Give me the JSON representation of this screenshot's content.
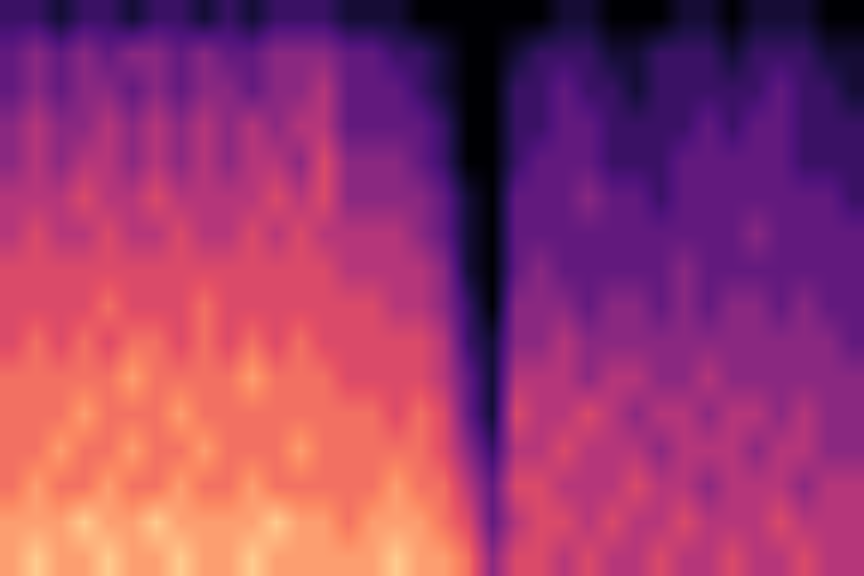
{
  "chart_data": {
    "type": "heatmap",
    "tick_labels": false,
    "zlim": [
      0,
      10
    ],
    "z": [
      [
        8,
        9,
        8,
        8,
        9,
        8,
        8,
        9,
        8,
        8,
        9,
        8,
        8,
        8,
        8,
        8,
        9,
        8,
        8,
        7,
        4,
        6,
        6,
        5,
        6,
        5,
        5,
        6,
        5,
        5,
        6,
        5,
        5,
        6,
        5,
        5
      ],
      [
        8,
        8,
        8,
        9,
        8,
        8,
        9,
        8,
        8,
        8,
        8,
        9,
        8,
        8,
        7,
        8,
        8,
        8,
        7,
        6,
        3,
        5,
        6,
        6,
        5,
        6,
        5,
        5,
        6,
        5,
        5,
        5,
        6,
        5,
        5,
        5
      ],
      [
        7,
        8,
        7,
        7,
        8,
        7,
        7,
        8,
        7,
        7,
        8,
        7,
        7,
        7,
        7,
        7,
        8,
        7,
        7,
        5,
        3,
        6,
        6,
        5,
        5,
        5,
        6,
        5,
        5,
        4,
        5,
        5,
        5,
        4,
        5,
        5
      ],
      [
        7,
        7,
        8,
        7,
        7,
        8,
        7,
        7,
        8,
        7,
        7,
        7,
        8,
        7,
        7,
        7,
        7,
        7,
        6,
        4,
        2,
        5,
        5,
        6,
        5,
        5,
        5,
        4,
        5,
        5,
        5,
        4,
        5,
        5,
        4,
        4
      ],
      [
        7,
        7,
        7,
        8,
        7,
        7,
        7,
        8,
        7,
        7,
        7,
        7,
        7,
        7,
        7,
        7,
        6,
        7,
        6,
        3,
        1,
        6,
        5,
        5,
        6,
        5,
        4,
        5,
        5,
        4,
        5,
        5,
        4,
        5,
        4,
        4
      ],
      [
        7,
        7,
        7,
        7,
        7,
        8,
        7,
        7,
        7,
        7,
        8,
        7,
        7,
        7,
        6,
        6,
        6,
        6,
        5,
        3,
        1,
        5,
        5,
        5,
        4,
        5,
        5,
        4,
        4,
        5,
        4,
        4,
        4,
        4,
        4,
        4
      ],
      [
        6,
        7,
        6,
        7,
        6,
        7,
        7,
        6,
        7,
        6,
        7,
        6,
        7,
        6,
        6,
        6,
        6,
        6,
        5,
        2,
        1,
        4,
        4,
        5,
        4,
        4,
        4,
        4,
        4,
        4,
        4,
        4,
        4,
        4,
        4,
        3
      ],
      [
        6,
        6,
        6,
        6,
        7,
        6,
        6,
        6,
        7,
        6,
        6,
        6,
        6,
        6,
        6,
        6,
        5,
        5,
        4,
        2,
        0,
        4,
        4,
        4,
        3,
        4,
        4,
        3,
        4,
        3,
        4,
        4,
        3,
        4,
        3,
        3
      ],
      [
        6,
        6,
        6,
        6,
        6,
        6,
        6,
        6,
        6,
        6,
        6,
        6,
        6,
        6,
        5,
        5,
        5,
        5,
        4,
        1,
        0,
        3,
        4,
        3,
        3,
        3,
        3,
        3,
        4,
        3,
        3,
        3,
        3,
        3,
        3,
        3
      ],
      [
        5,
        6,
        5,
        5,
        6,
        5,
        5,
        6,
        5,
        5,
        6,
        5,
        6,
        5,
        5,
        5,
        5,
        4,
        3,
        1,
        0,
        3,
        3,
        3,
        3,
        3,
        3,
        3,
        3,
        3,
        3,
        4,
        3,
        3,
        3,
        3
      ],
      [
        5,
        5,
        5,
        6,
        5,
        5,
        6,
        5,
        5,
        5,
        5,
        6,
        5,
        6,
        4,
        4,
        4,
        4,
        3,
        1,
        0,
        3,
        3,
        3,
        4,
        3,
        3,
        2,
        3,
        3,
        3,
        3,
        3,
        3,
        3,
        2
      ],
      [
        4,
        5,
        4,
        5,
        5,
        4,
        5,
        4,
        5,
        4,
        5,
        5,
        4,
        6,
        4,
        4,
        4,
        3,
        2,
        0,
        0,
        2,
        3,
        3,
        3,
        2,
        2,
        2,
        3,
        3,
        3,
        3,
        3,
        2,
        2,
        2
      ],
      [
        4,
        5,
        4,
        4,
        5,
        4,
        5,
        4,
        5,
        4,
        5,
        4,
        5,
        5,
        3,
        3,
        3,
        3,
        2,
        0,
        0,
        2,
        2,
        3,
        3,
        2,
        2,
        2,
        2,
        3,
        2,
        3,
        3,
        2,
        2,
        2
      ],
      [
        3,
        4,
        3,
        4,
        4,
        3,
        4,
        3,
        4,
        4,
        3,
        4,
        4,
        5,
        3,
        3,
        3,
        2,
        1,
        0,
        0,
        2,
        2,
        3,
        2,
        2,
        1,
        2,
        2,
        2,
        2,
        2,
        3,
        2,
        2,
        1
      ],
      [
        3,
        4,
        3,
        4,
        3,
        4,
        4,
        3,
        4,
        3,
        3,
        4,
        4,
        4,
        3,
        3,
        2,
        2,
        1,
        0,
        0,
        1,
        2,
        2,
        2,
        1,
        1,
        2,
        2,
        2,
        1,
        2,
        2,
        2,
        1,
        1
      ],
      [
        2,
        2,
        1,
        2,
        2,
        1,
        2,
        2,
        1,
        2,
        1,
        2,
        2,
        2,
        1,
        1,
        1,
        0,
        0,
        0,
        0,
        0,
        0,
        1,
        1,
        0,
        0,
        0,
        1,
        1,
        0,
        1,
        1,
        1,
        0,
        0
      ]
    ]
  }
}
